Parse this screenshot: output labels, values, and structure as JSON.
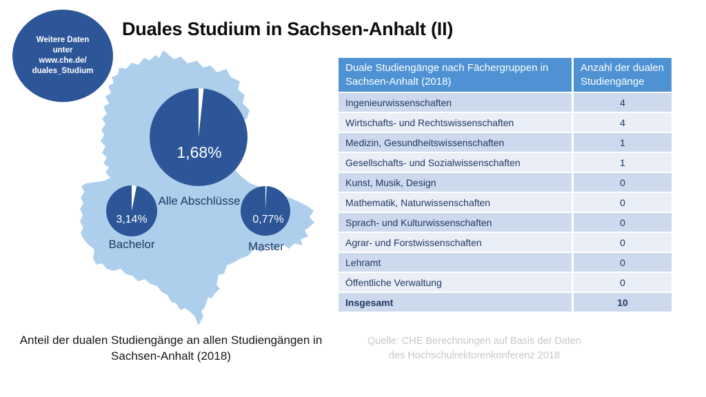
{
  "title": "Duales Studium in Sachsen-Anhalt (II)",
  "badge": {
    "line1": "Weitere Daten",
    "line2": "unter",
    "line3": "www.che.de/",
    "line4": "duales_Studium"
  },
  "map_caption": "Anteil der dualen Studiengänge an allen Studiengängen in Sachsen-Anhalt (2018)",
  "source": {
    "line1": "Quelle: CHE Berechnungen auf Basis der Daten",
    "line2": "des Hochschulrektorenkonferenz 2018"
  },
  "colors": {
    "dark_blue": "#2C5697",
    "navy_text": "#1F3864",
    "map_blue": "#ADCFEC",
    "table_header_blue": "#4E92D3",
    "row_dark": "#CDD9EC",
    "row_light": "#E9EEF7",
    "slice_white": "#FFFFFF",
    "source_gray": "#C8C8C8"
  },
  "chart_data": [
    {
      "type": "pie",
      "title": "Anteil der dualen Studiengänge an allen Studiengängen in Sachsen-Anhalt (2018)",
      "legend_position": "below-each-pie",
      "series": [
        {
          "name": "Alle Abschlüsse",
          "value_pct": 1.68,
          "display": "1,68%",
          "slice_color": "#FFFFFF",
          "rest_color": "#2C5697"
        },
        {
          "name": "Bachelor",
          "value_pct": 3.14,
          "display": "3,14%",
          "slice_color": "#FFFFFF",
          "rest_color": "#2C5697"
        },
        {
          "name": "Master",
          "value_pct": 0.77,
          "display": "0,77%",
          "slice_color": "#FFFFFF",
          "rest_color": "#2C5697"
        }
      ]
    },
    {
      "type": "table",
      "columns": [
        "Duale Studiengänge nach Fächergruppen in Sachsen-Anhalt (2018)",
        "Anzahl der dualen Studiengänge"
      ],
      "rows": [
        {
          "label": "Ingenieurwissenschaften",
          "value": "4"
        },
        {
          "label": "Wirtschafts- und Rechtswissenschaften",
          "value": "4"
        },
        {
          "label": "Medizin, Gesundheitswissenschaften",
          "value": "1"
        },
        {
          "label": "Gesellschafts- und Sozialwissenschaften",
          "value": "1"
        },
        {
          "label": "Kunst, Musik, Design",
          "value": "0"
        },
        {
          "label": "Mathematik, Naturwissenschaften",
          "value": "0"
        },
        {
          "label": "Sprach- und Kulturwissenschaften",
          "value": "0"
        },
        {
          "label": "Agrar- und Forstwissenschaften",
          "value": "0"
        },
        {
          "label": "Lehramt",
          "value": "0"
        },
        {
          "label": "Öffentliche Verwaltung",
          "value": "0"
        },
        {
          "label": "Insgesamt",
          "value": "10"
        }
      ]
    }
  ]
}
